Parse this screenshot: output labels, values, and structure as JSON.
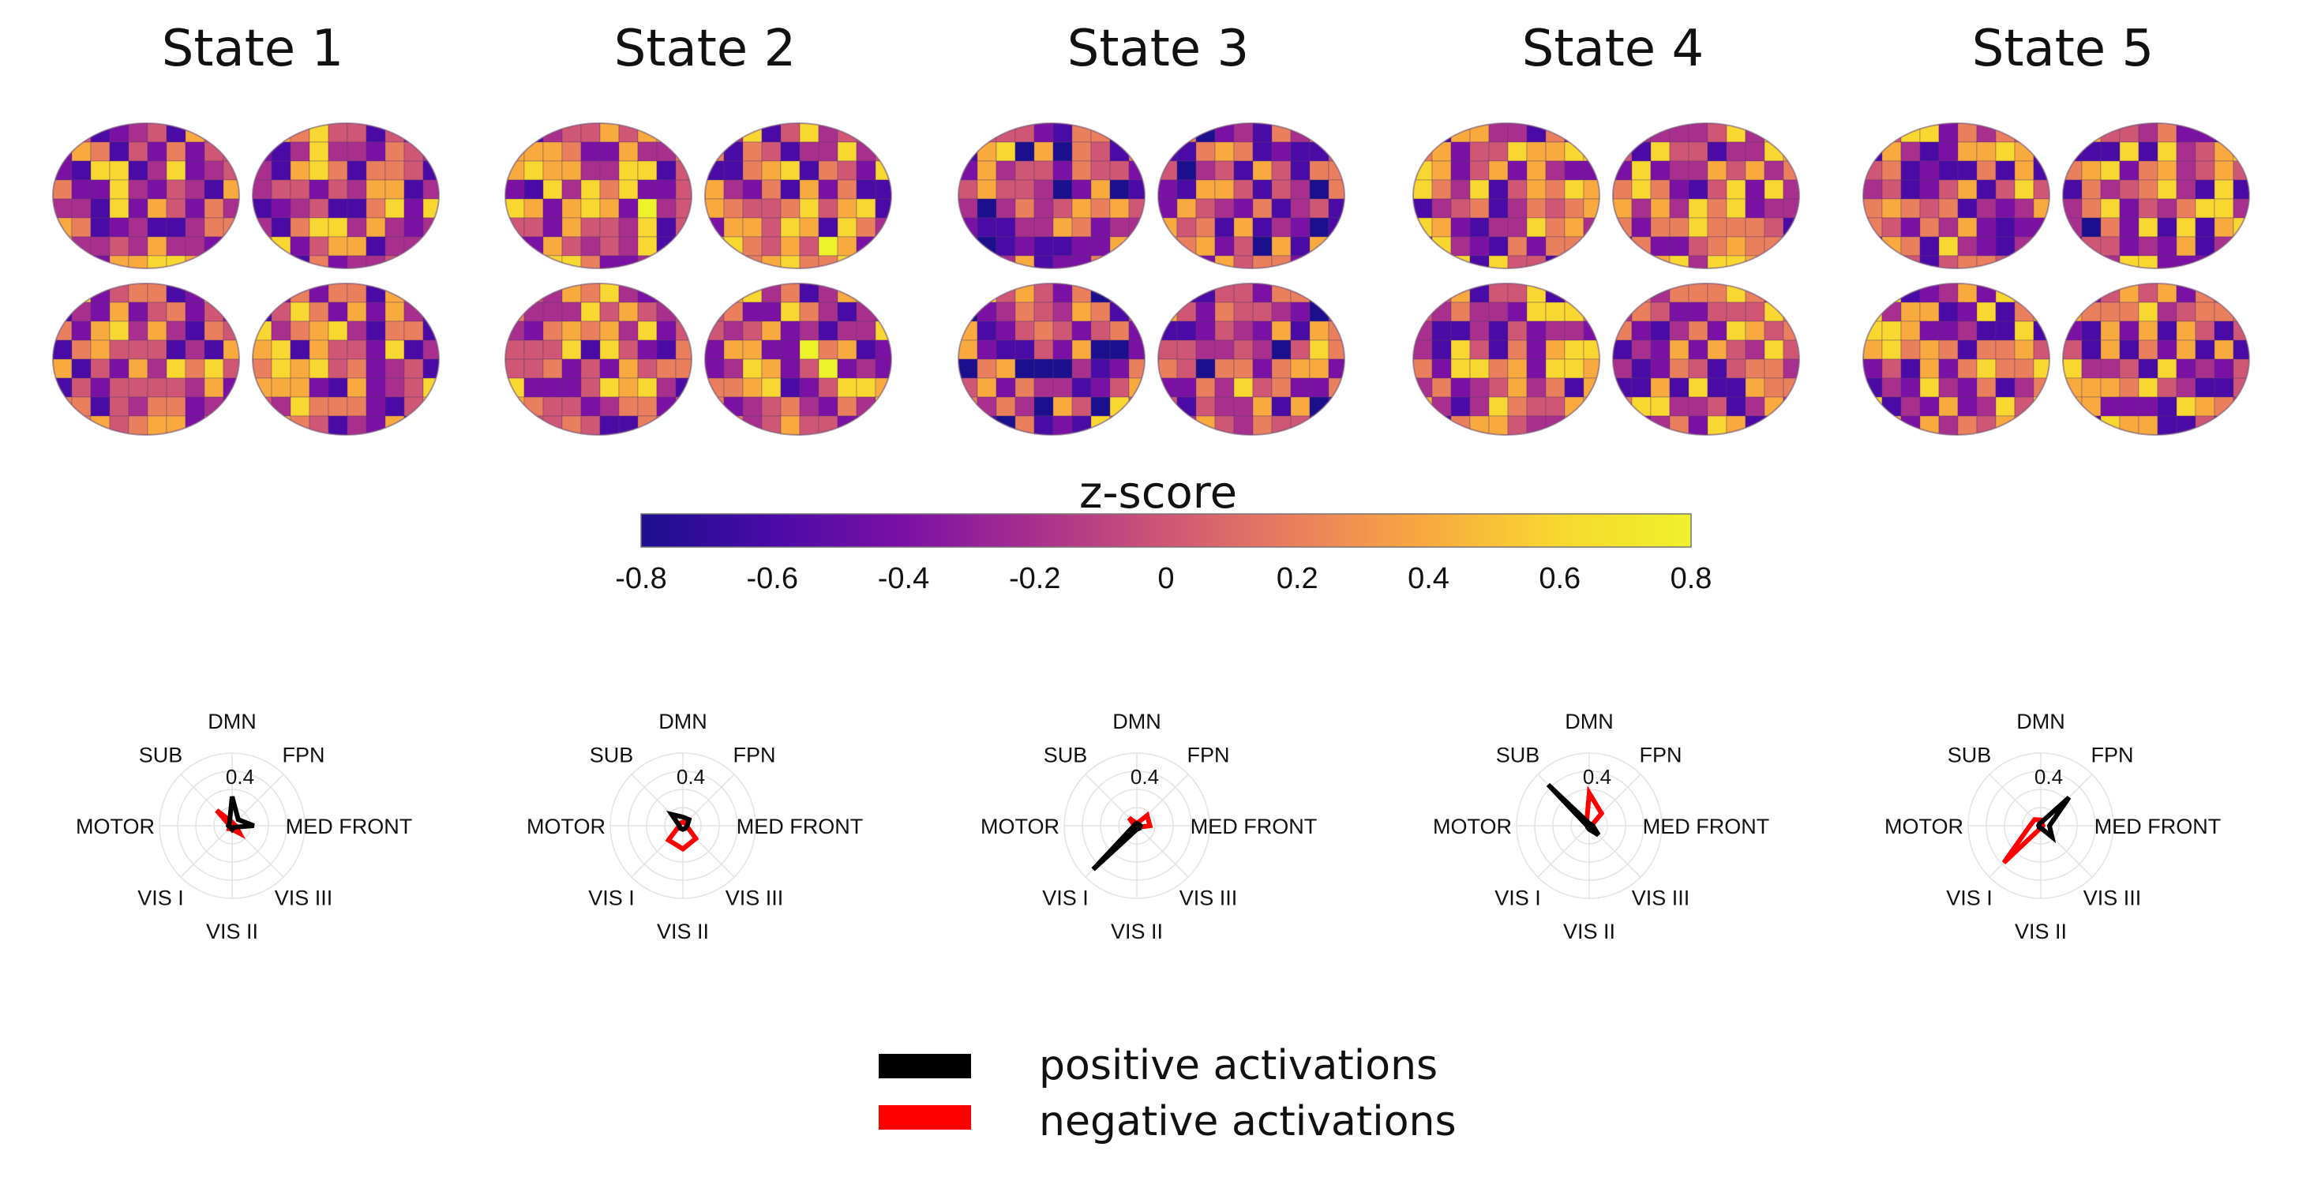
{
  "chart_data": {
    "type": "radar",
    "states": [
      {
        "title": "State 1",
        "positive": [
          0.4,
          0.12,
          0.3,
          0.03,
          0.05,
          0.03,
          0.05,
          0.05
        ],
        "negative": [
          0.05,
          0.03,
          0.05,
          0.15,
          0.05,
          0.06,
          0.03,
          0.3
        ]
      },
      {
        "title": "State 2",
        "positive": [
          0.12,
          0.12,
          0.06,
          0.05,
          0.05,
          0.05,
          0.05,
          0.22
        ],
        "negative": [
          0.05,
          0.05,
          0.05,
          0.25,
          0.32,
          0.28,
          0.05,
          0.05
        ]
      },
      {
        "title": "State 3",
        "positive": [
          0.03,
          0.03,
          0.05,
          0.05,
          0.05,
          0.85,
          0.04,
          0.03
        ],
        "negative": [
          0.03,
          0.2,
          0.18,
          0.03,
          0.03,
          0.03,
          0.03,
          0.15
        ]
      },
      {
        "title": "State 4",
        "positive": [
          0.03,
          0.03,
          0.05,
          0.18,
          0.05,
          0.03,
          0.03,
          0.8
        ],
        "negative": [
          0.45,
          0.24,
          0.03,
          0.03,
          0.03,
          0.03,
          0.03,
          0.05
        ]
      },
      {
        "title": "State 5",
        "positive": [
          0.04,
          0.55,
          0.12,
          0.22,
          0.03,
          0.03,
          0.03,
          0.03
        ],
        "negative": [
          0.08,
          0.03,
          0.03,
          0.03,
          0.03,
          0.72,
          0.15,
          0.12
        ]
      }
    ],
    "axes": [
      "DMN",
      "FPN",
      "MED FRONT",
      "VIS III",
      "VIS II",
      "VIS I",
      "MOTOR",
      "SUB"
    ],
    "r_tick_label": "0.4",
    "r_max": 1.0,
    "colorbar": {
      "title": "z-score",
      "ticks": [
        "-0.8",
        "-0.6",
        "-0.4",
        "-0.2",
        "0",
        "0.2",
        "0.4",
        "0.6",
        "0.8"
      ],
      "range": [
        -0.8,
        0.8
      ],
      "colormap": [
        "#1c0f8e",
        "#4a0aa6",
        "#7b10a5",
        "#a82f8d",
        "#cf5675",
        "#ea7f5d",
        "#f8aa3f",
        "#f8d830",
        "#eef22b"
      ]
    },
    "legend": [
      {
        "label": "positive activations",
        "color": "#000000"
      },
      {
        "label": "negative activations",
        "color": "#ff0000"
      }
    ]
  }
}
